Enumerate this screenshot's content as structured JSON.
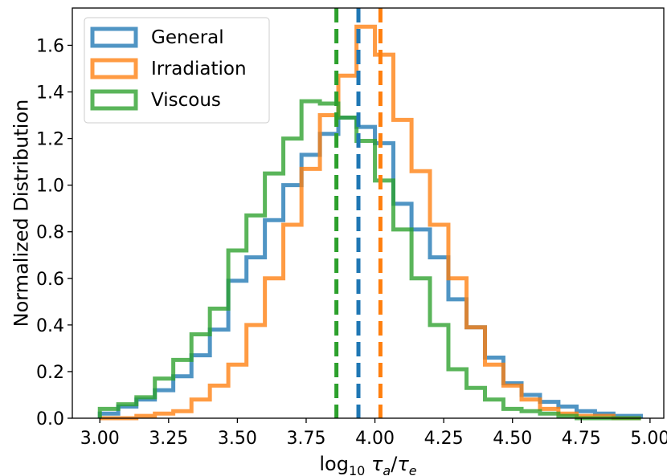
{
  "chart_data": {
    "type": "histogram-step",
    "title": "",
    "xlabel": "log10 τa/τe",
    "ylabel": "Normalized Distribution",
    "xlim": [
      2.9,
      5.05
    ],
    "ylim": [
      0.0,
      1.76
    ],
    "xticks": [
      3.0,
      3.25,
      3.5,
      3.75,
      4.0,
      4.25,
      4.5,
      4.75,
      5.0
    ],
    "xtick_labels": [
      "3.00",
      "3.25",
      "3.50",
      "3.75",
      "4.00",
      "4.25",
      "4.50",
      "4.75",
      "5.00"
    ],
    "yticks": [
      0.0,
      0.2,
      0.4,
      0.6,
      0.8,
      1.0,
      1.2,
      1.4,
      1.6
    ],
    "ytick_labels": [
      "0.0",
      "0.2",
      "0.4",
      "0.6",
      "0.8",
      "1.0",
      "1.2",
      "1.4",
      "1.6"
    ],
    "bin_edges": [
      3.0,
      3.067,
      3.133,
      3.2,
      3.267,
      3.333,
      3.4,
      3.467,
      3.533,
      3.6,
      3.667,
      3.733,
      3.8,
      3.867,
      3.933,
      4.0,
      4.067,
      4.133,
      4.2,
      4.267,
      4.333,
      4.4,
      4.467,
      4.533,
      4.6,
      4.667,
      4.733,
      4.8,
      4.867,
      4.933,
      4.967
    ],
    "legend_position": "upper-left",
    "series": [
      {
        "name": "General",
        "color": "#1f77b4",
        "values": [
          0.02,
          0.05,
          0.08,
          0.12,
          0.18,
          0.27,
          0.38,
          0.59,
          0.69,
          0.85,
          1.0,
          1.13,
          1.22,
          1.29,
          1.25,
          1.18,
          0.92,
          0.81,
          0.69,
          0.51,
          0.39,
          0.26,
          0.15,
          0.1,
          0.07,
          0.05,
          0.03,
          0.02,
          0.01,
          0.01
        ],
        "mean_line": 3.94
      },
      {
        "name": "Irradiation",
        "color": "#ff7f0e",
        "values": [
          0.0,
          0.0,
          0.01,
          0.02,
          0.03,
          0.08,
          0.14,
          0.23,
          0.4,
          0.6,
          0.83,
          1.07,
          1.3,
          1.47,
          1.68,
          1.56,
          1.28,
          1.06,
          0.83,
          0.6,
          0.39,
          0.23,
          0.14,
          0.08,
          0.04,
          0.02,
          0.01,
          0.01,
          0.0,
          0.0
        ],
        "mean_line": 4.02
      },
      {
        "name": "Viscous",
        "color": "#2ca02c",
        "values": [
          0.04,
          0.06,
          0.09,
          0.17,
          0.25,
          0.36,
          0.47,
          0.72,
          0.87,
          1.05,
          1.2,
          1.36,
          1.35,
          1.29,
          1.19,
          1.02,
          0.81,
          0.6,
          0.4,
          0.21,
          0.13,
          0.08,
          0.04,
          0.03,
          0.02,
          0.01,
          0.0,
          0.0,
          0.0,
          0.0
        ],
        "mean_line": 3.86
      }
    ]
  }
}
